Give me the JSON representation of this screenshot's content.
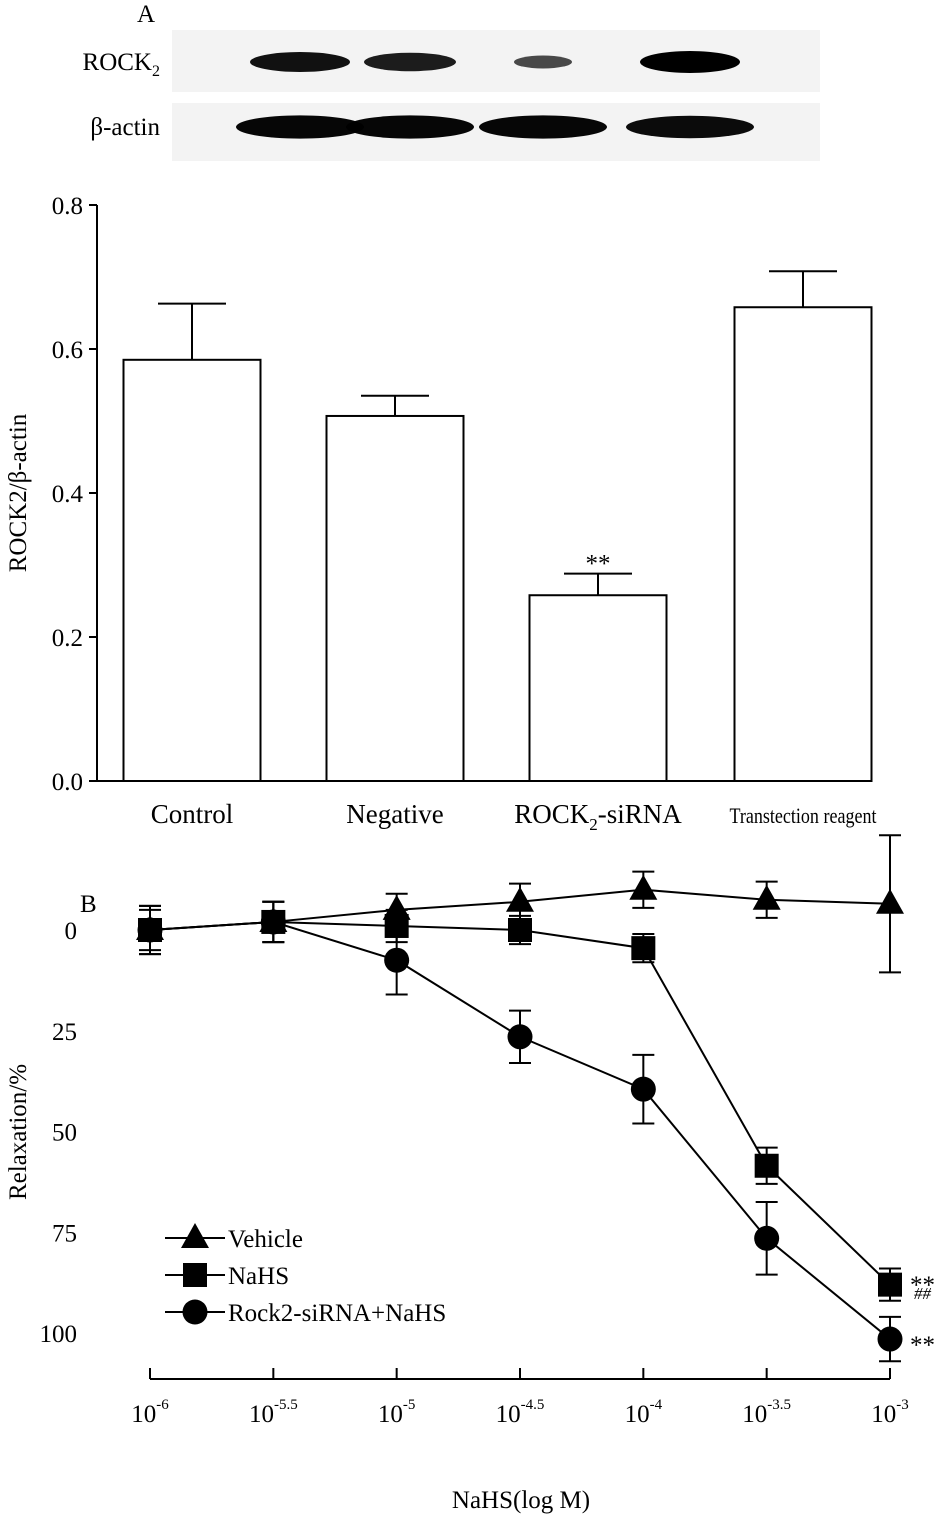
{
  "panel_a": {
    "label": "A",
    "blot": {
      "rows": [
        {
          "name": "ROCK",
          "subscript": "2"
        },
        {
          "name": "β-actin",
          "subscript": ""
        }
      ],
      "lane_intensity": {
        "ROCK2": [
          0.85,
          0.75,
          0.35,
          1.0
        ],
        "beta_actin": [
          0.95,
          0.95,
          0.95,
          0.9
        ]
      }
    }
  },
  "panel_b": {
    "label": "B",
    "legend": [
      "Vehicle",
      "NaHS",
      "Rock2-siRNA+NaHS"
    ],
    "annotations": [
      {
        "text": "**",
        "target": "NaHS"
      },
      {
        "text": "##",
        "target": "NaHS"
      },
      {
        "text": "**",
        "target": "Rock2-siRNA+NaHS"
      }
    ]
  },
  "chart_data": [
    {
      "type": "bar",
      "title": "",
      "xlabel": "",
      "ylabel": "ROCK2/β-actin",
      "ylim": [
        0,
        0.8
      ],
      "yticks": [
        "0.0",
        "0.2",
        "0.4",
        "0.6",
        "0.8"
      ],
      "categories": [
        "Control",
        "Negative",
        "ROCK2-siRNA",
        "Transtection reagent"
      ],
      "category_display": [
        {
          "main": "Control",
          "sub": "",
          "tail": ""
        },
        {
          "main": "Negative",
          "sub": "",
          "tail": ""
        },
        {
          "main": "ROCK",
          "sub": "2",
          "tail": "-siRNA"
        },
        {
          "main": "Transtection reagent",
          "sub": "",
          "tail": ""
        }
      ],
      "values": [
        0.585,
        0.507,
        0.258,
        0.658
      ],
      "errors": [
        0.078,
        0.028,
        0.03,
        0.05
      ],
      "significance": [
        "",
        "",
        "**",
        ""
      ]
    },
    {
      "type": "line",
      "title": "",
      "xlabel": "NaHS(log M)",
      "ylabel": "Relaxation/%",
      "x": [
        -6,
        -5.5,
        -5,
        -4.5,
        -4,
        -3.5,
        -3
      ],
      "xtick_labels": [
        {
          "base": "10",
          "exp": "-6"
        },
        {
          "base": "10",
          "exp": "-5.5"
        },
        {
          "base": "10",
          "exp": "-5"
        },
        {
          "base": "10",
          "exp": "-4.5"
        },
        {
          "base": "10",
          "exp": "-4"
        },
        {
          "base": "10",
          "exp": "-3.5"
        },
        {
          "base": "10",
          "exp": "-3"
        }
      ],
      "ylim": [
        -12,
        105
      ],
      "y_inverted": true,
      "yticks": [
        "0",
        "25",
        "50",
        "75",
        "100"
      ],
      "series": [
        {
          "name": "Vehicle",
          "marker": "triangle",
          "values": [
            0,
            -2,
            -5,
            -7,
            -10,
            -7.5,
            -6.5
          ],
          "errors": [
            6,
            5,
            4,
            4.5,
            4.5,
            4.5,
            17
          ]
        },
        {
          "name": "NaHS",
          "marker": "square",
          "values": [
            0,
            -2,
            -1,
            0,
            4.5,
            58.5,
            88
          ],
          "errors": [
            6,
            5,
            4,
            3.5,
            3.5,
            4.5,
            4
          ]
        },
        {
          "name": "Rock2-siRNA+NaHS",
          "marker": "circle",
          "values": [
            0,
            -2,
            7.5,
            26.5,
            39.5,
            76.5,
            101.5
          ],
          "errors": [
            5,
            5,
            8.5,
            6.5,
            8.5,
            9,
            5.5
          ]
        }
      ]
    }
  ]
}
